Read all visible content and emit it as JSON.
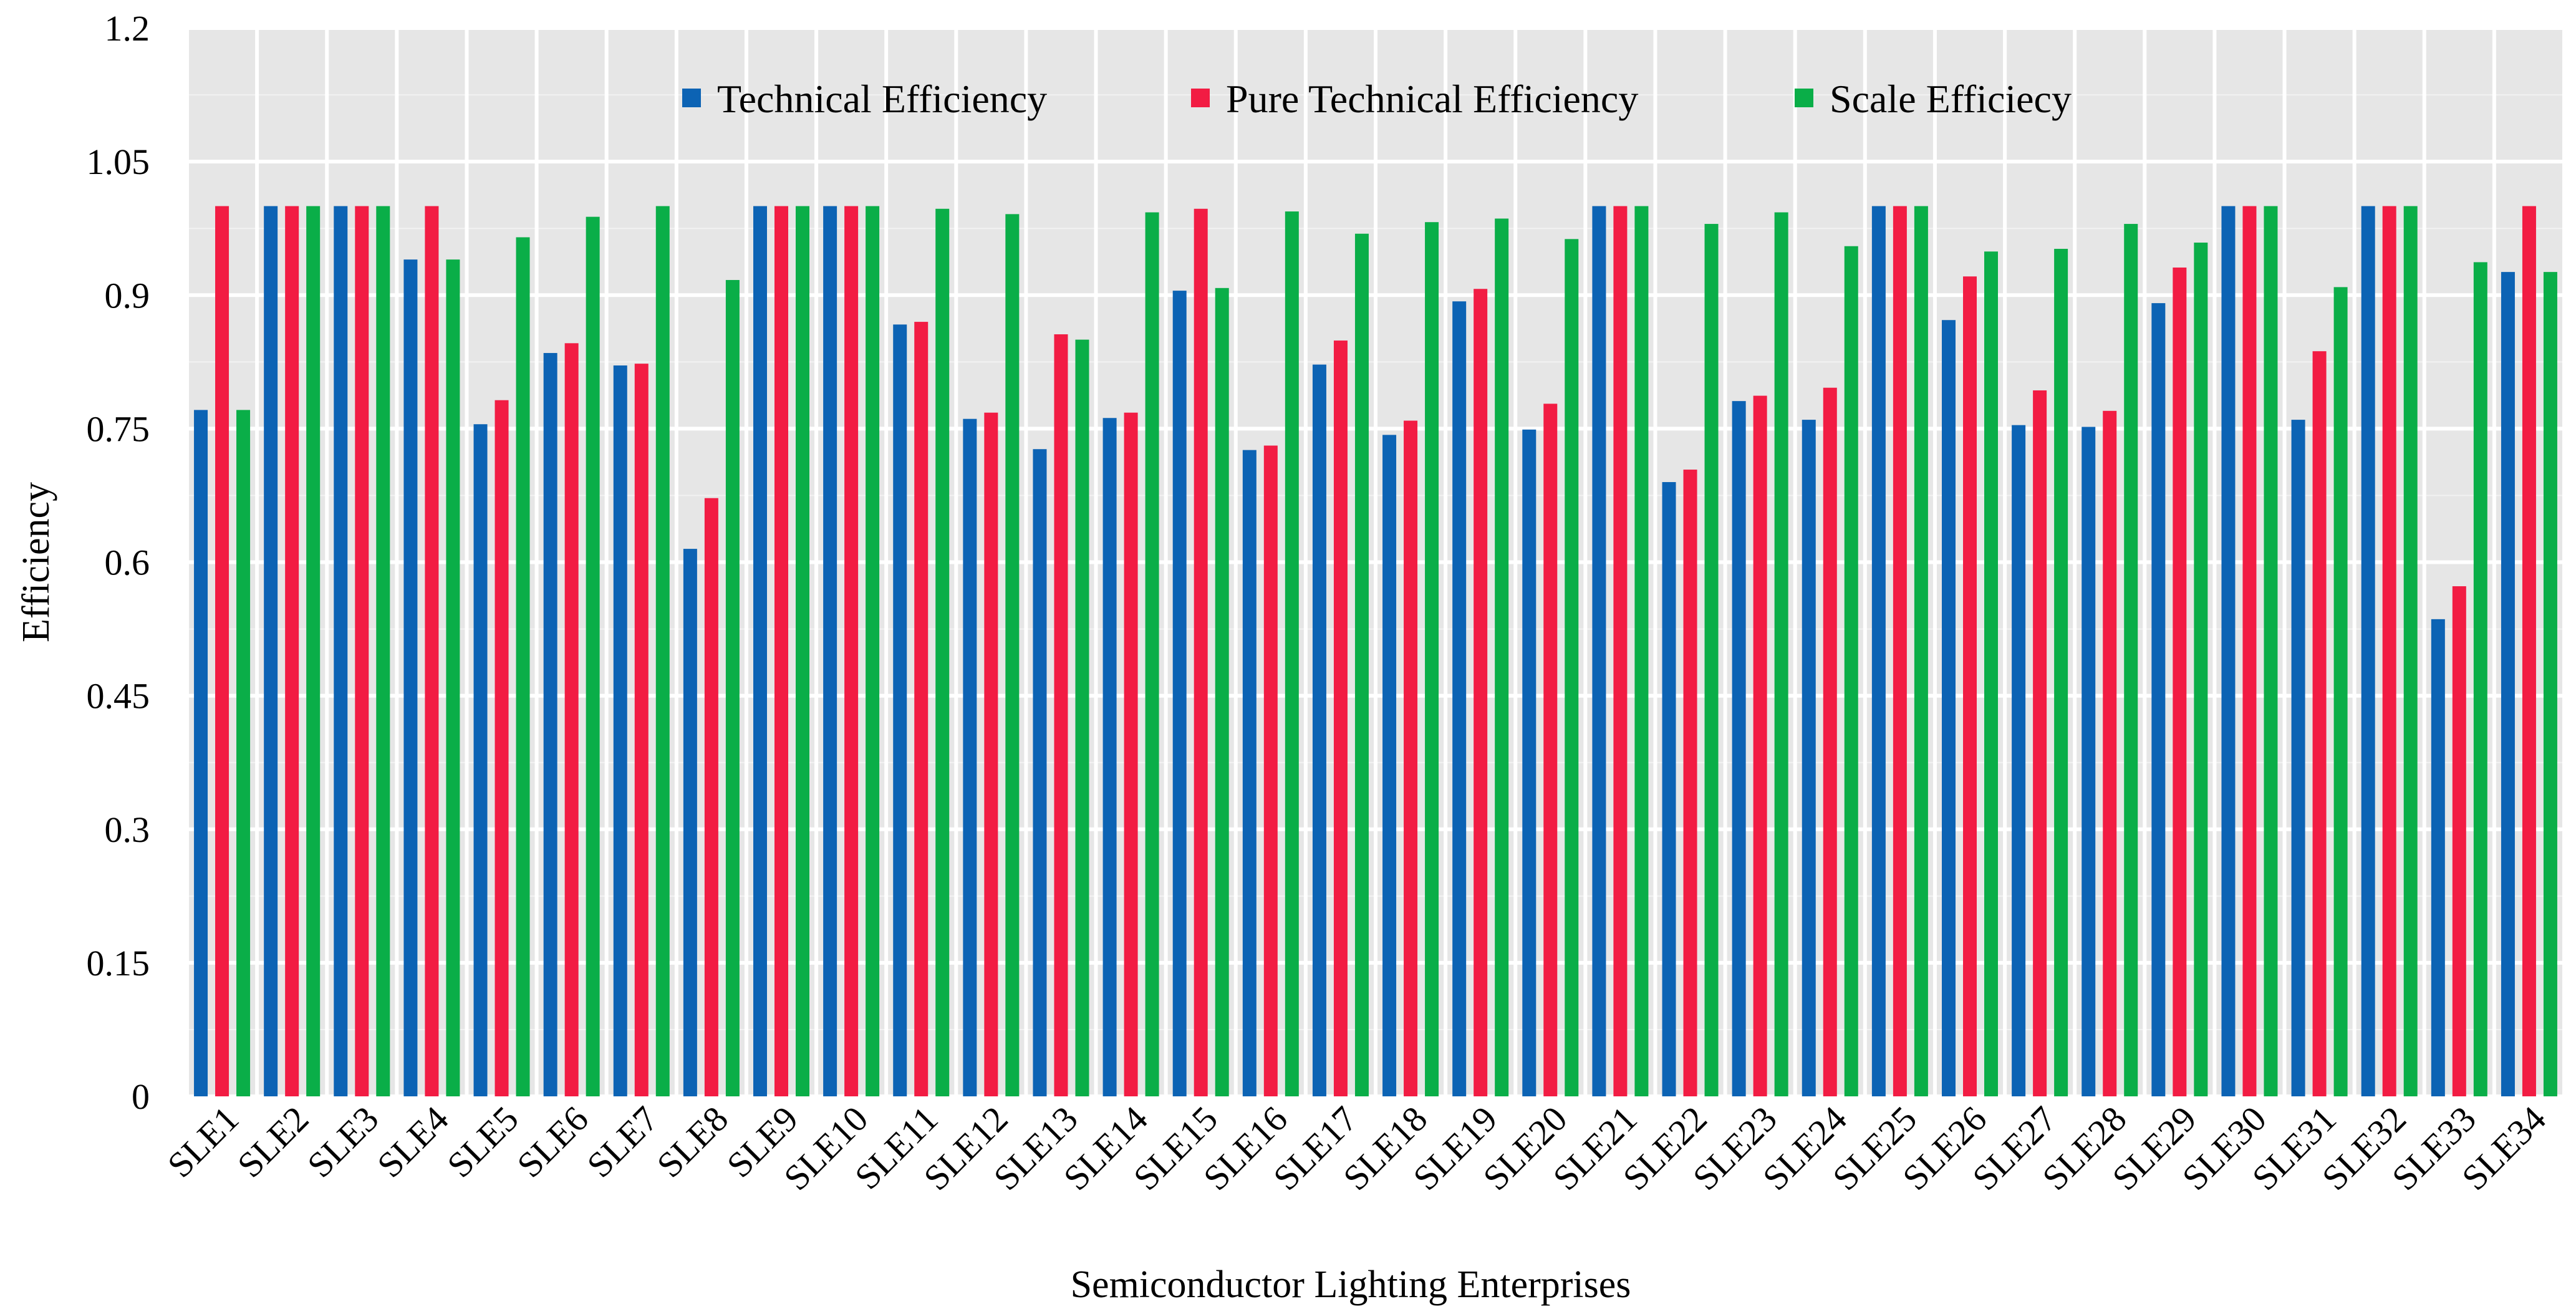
{
  "chart_data": {
    "type": "bar",
    "title": "",
    "xlabel": "Semiconductor Lighting Enterprises",
    "ylabel": "Efficiency",
    "ylim": [
      0,
      1.2
    ],
    "yticks": [
      "0",
      "0.15",
      "0.3",
      "0.45",
      "0.6",
      "0.75",
      "0.9",
      "1.05",
      "1.2"
    ],
    "ytick_values": [
      0,
      0.15,
      0.3,
      0.45,
      0.6,
      0.75,
      0.9,
      1.05,
      1.2
    ],
    "grid": true,
    "legend_position": "top",
    "categories": [
      "SLE1",
      "SLE2",
      "SLE3",
      "SLE4",
      "SLE5",
      "SLE6",
      "SLE7",
      "SLE8",
      "SLE9",
      "SLE10",
      "SLE11",
      "SLE12",
      "SLE13",
      "SLE14",
      "SLE15",
      "SLE16",
      "SLE17",
      "SLE18",
      "SLE19",
      "SLE20",
      "SLE21",
      "SLE22",
      "SLE23",
      "SLE24",
      "SLE25",
      "SLE26",
      "SLE27",
      "SLE28",
      "SLE29",
      "SLE30",
      "SLE31",
      "SLE32",
      "SLE33",
      "SLE34"
    ],
    "series": [
      {
        "name": "Technical Efficiency",
        "color": "#0c63b4",
        "values": [
          0.771,
          1.0,
          1.0,
          0.94,
          0.755,
          0.835,
          0.821,
          0.615,
          1.0,
          1.0,
          0.867,
          0.761,
          0.727,
          0.762,
          0.905,
          0.726,
          0.822,
          0.743,
          0.893,
          0.749,
          1.0,
          0.69,
          0.781,
          0.76,
          1.0,
          0.872,
          0.754,
          0.752,
          0.891,
          1.0,
          0.76,
          1.0,
          0.536,
          0.926
        ]
      },
      {
        "name": "Pure Technical Efficiency",
        "color": "#f21c43",
        "values": [
          1.0,
          1.0,
          1.0,
          1.0,
          0.782,
          0.846,
          0.823,
          0.672,
          1.0,
          1.0,
          0.87,
          0.768,
          0.856,
          0.768,
          0.997,
          0.731,
          0.849,
          0.759,
          0.907,
          0.778,
          1.0,
          0.704,
          0.787,
          0.796,
          1.0,
          0.921,
          0.793,
          0.77,
          0.931,
          1.0,
          0.837,
          1.0,
          0.573,
          1.0
        ]
      },
      {
        "name": "Scale Efficiecy",
        "color": "#0aae48",
        "values": [
          0.771,
          1.0,
          1.0,
          0.94,
          0.965,
          0.988,
          1.0,
          0.917,
          1.0,
          1.0,
          0.997,
          0.991,
          0.85,
          0.993,
          0.908,
          0.994,
          0.969,
          0.982,
          0.986,
          0.963,
          1.0,
          0.98,
          0.993,
          0.955,
          1.0,
          0.949,
          0.952,
          0.98,
          0.959,
          1.0,
          0.909,
          1.0,
          0.937,
          0.926
        ]
      }
    ]
  }
}
